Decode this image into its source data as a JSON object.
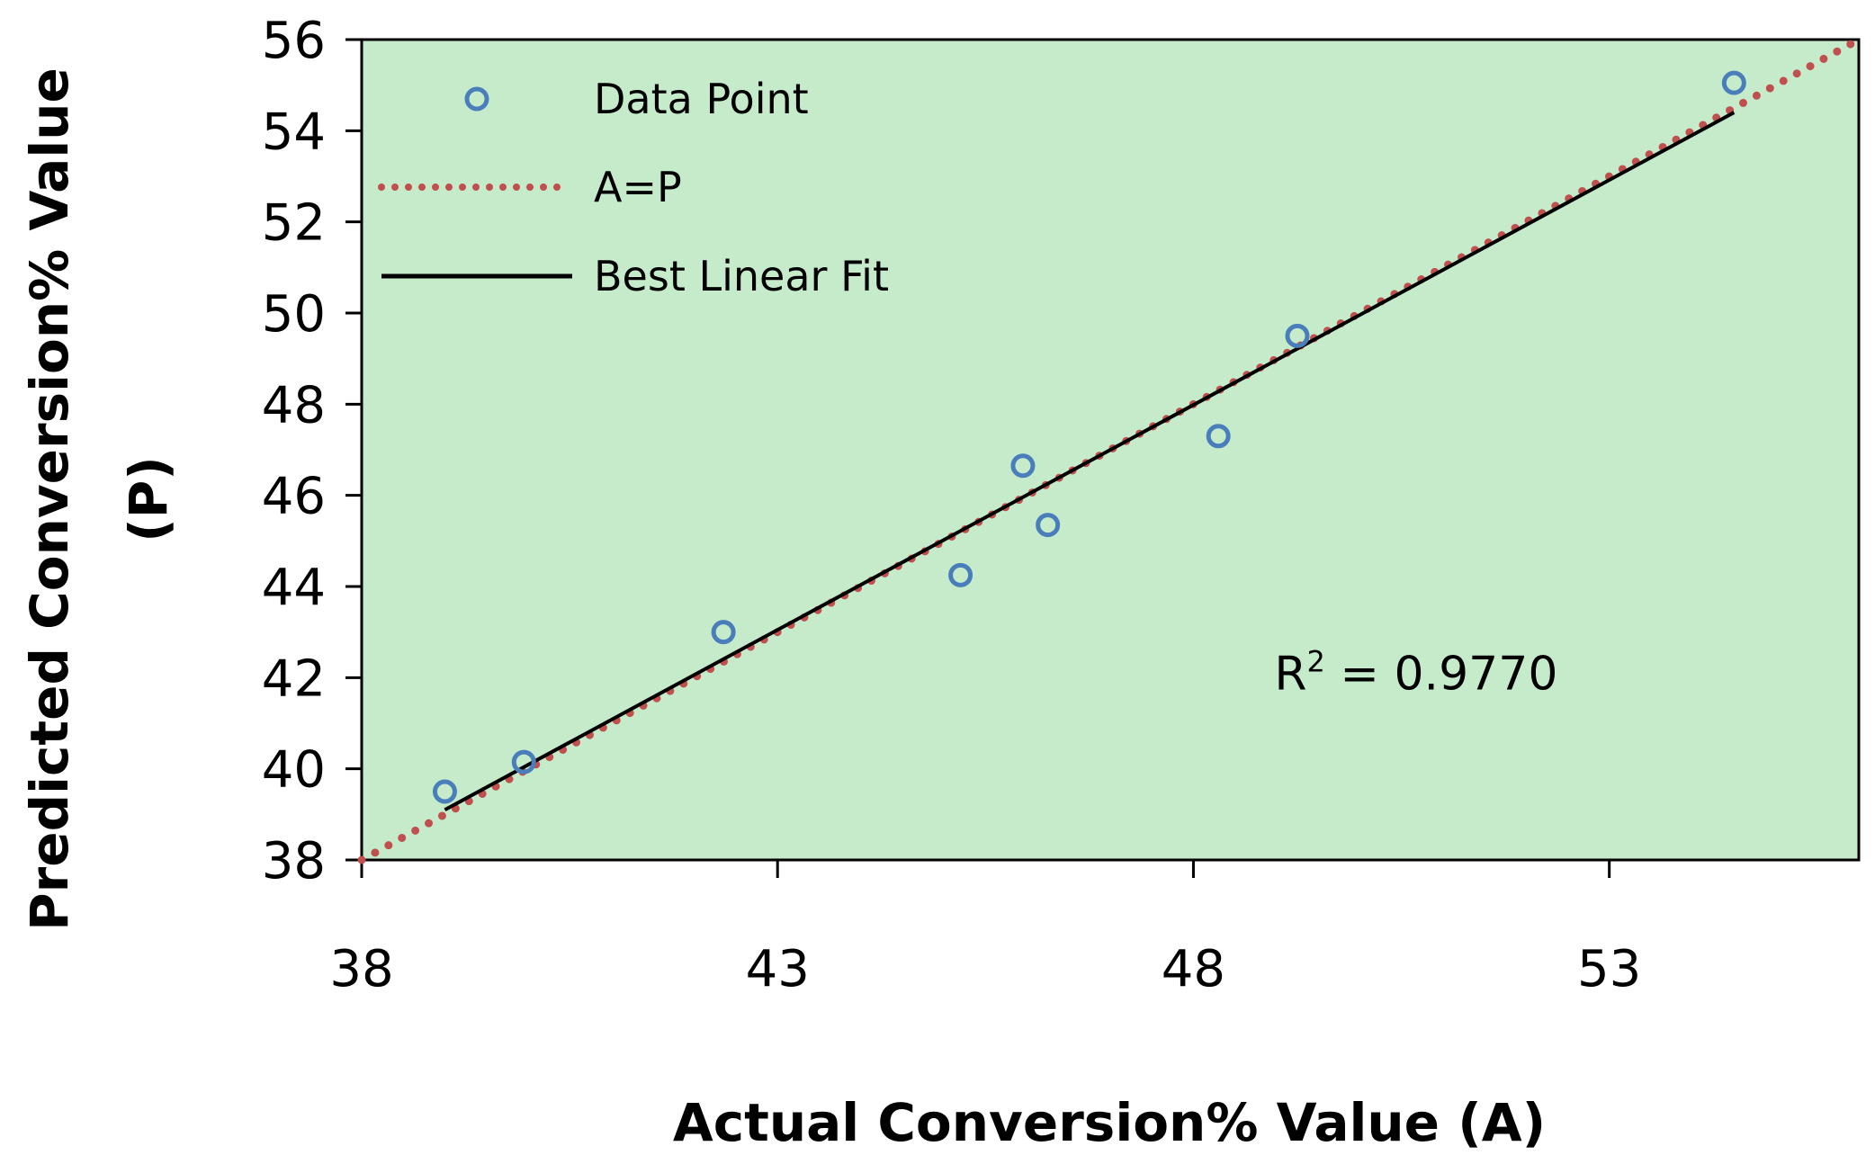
{
  "chart_data": {
    "type": "scatter",
    "xlabel": "Actual Conversion% Value (A)",
    "ylabel_lines": [
      "Predicted Conversion% Value",
      "(P)"
    ],
    "xlim": [
      38,
      56
    ],
    "ylim": [
      38,
      56
    ],
    "x_ticks": [
      38,
      43,
      48,
      53
    ],
    "y_ticks": [
      38,
      40,
      42,
      44,
      46,
      48,
      50,
      52,
      54,
      56
    ],
    "grid": false,
    "plot_background": "#c6ebcb",
    "legend_position": "top-left",
    "series": [
      {
        "name": "Data Point",
        "kind": "markers",
        "color": "#4a7ebb",
        "points": [
          [
            39.0,
            39.5
          ],
          [
            39.95,
            40.15
          ],
          [
            42.35,
            43.0
          ],
          [
            45.2,
            44.25
          ],
          [
            45.95,
            46.65
          ],
          [
            46.25,
            45.35
          ],
          [
            48.3,
            47.3
          ],
          [
            49.25,
            49.5
          ],
          [
            54.5,
            55.05
          ]
        ]
      },
      {
        "name": "A=P",
        "kind": "dotted-line",
        "color": "#c0504d",
        "points": [
          [
            38,
            38
          ],
          [
            56,
            56
          ]
        ]
      },
      {
        "name": "Best Linear Fit",
        "kind": "solid-line",
        "color": "#000000",
        "points": [
          [
            39.0,
            39.1
          ],
          [
            54.5,
            54.4
          ]
        ]
      }
    ],
    "annotation": {
      "text_main": "R",
      "text_sup": "2",
      "text_rest": " = 0.9770",
      "x": 50.0,
      "y": 42.1
    }
  }
}
